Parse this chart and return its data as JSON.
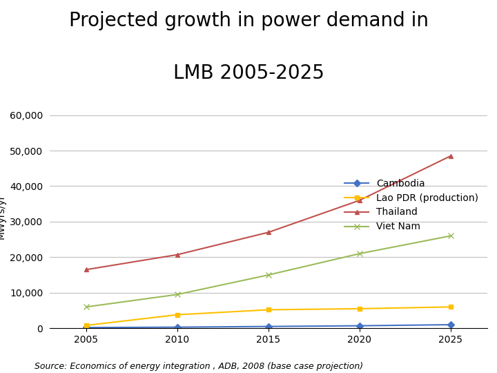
{
  "title_line1": "Projected growth in power demand in",
  "title_line2": "LMB 2005-2025",
  "ylabel": "MWyrs/yr",
  "years": [
    2005,
    2010,
    2015,
    2020,
    2025
  ],
  "series": {
    "Cambodia": {
      "values": [
        200,
        300,
        500,
        700,
        1000
      ],
      "color": "#4472C4",
      "marker": "D",
      "markersize": 5
    },
    "Lao PDR (production)": {
      "values": [
        800,
        3800,
        5200,
        5500,
        6000
      ],
      "color": "#FFC000",
      "marker": "s",
      "markersize": 5
    },
    "Thailand": {
      "values": [
        16500,
        20700,
        27000,
        36000,
        48500
      ],
      "color": "#C0504D",
      "marker": "^",
      "markersize": 5
    },
    "Viet Nam": {
      "values": [
        6000,
        9500,
        15000,
        21000,
        26000
      ],
      "color": "#9BBB59",
      "marker": "x",
      "markersize": 6
    }
  },
  "ylim": [
    0,
    63000
  ],
  "yticks": [
    0,
    10000,
    20000,
    30000,
    40000,
    50000,
    60000
  ],
  "ytick_labels": [
    "0",
    "10,000",
    "20,000",
    "30,000",
    "40,000",
    "50,000",
    "60,000"
  ],
  "source_text": "Source: Economics of energy integration , ADB, 2008 (base case projection)",
  "background_color": "#FFFFFF",
  "grid_color": "#BFBFBF",
  "title_fontsize": 20,
  "axis_fontsize": 10,
  "legend_fontsize": 10,
  "source_fontsize": 9
}
